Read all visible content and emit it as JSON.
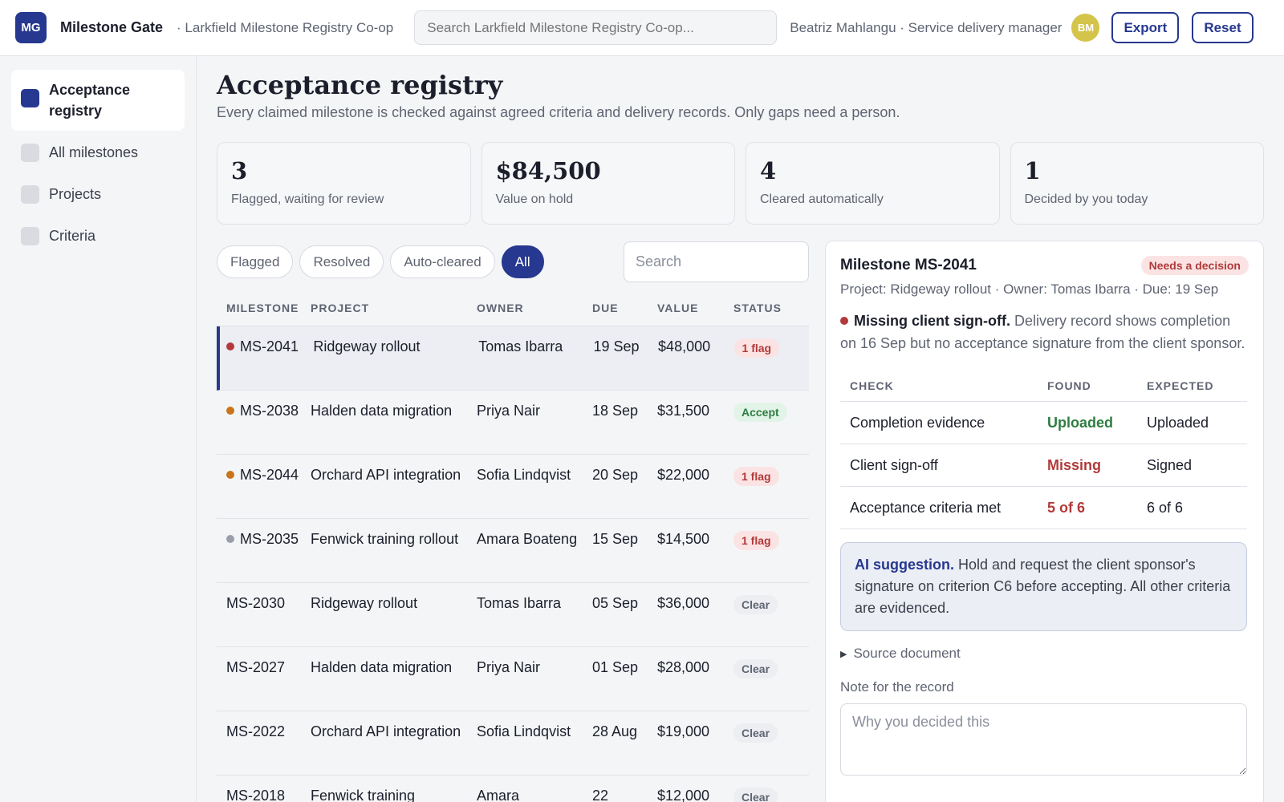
{
  "header": {
    "logo": "MG",
    "app_title": "Milestone Gate",
    "org": "· Larkfield Milestone Registry Co-op",
    "search_placeholder": "Search Larkfield Milestone Registry Co-op...",
    "user": "Beatriz Mahlangu · Service delivery manager",
    "avatar": "BM",
    "export_label": "Export",
    "reset_label": "Reset"
  },
  "sidebar": {
    "items": [
      {
        "label": "Acceptance registry",
        "active": true
      },
      {
        "label": "All milestones",
        "active": false
      },
      {
        "label": "Projects",
        "active": false
      },
      {
        "label": "Criteria",
        "active": false
      }
    ]
  },
  "main": {
    "title": "Acceptance registry",
    "subtitle": "Every claimed milestone is checked against agreed criteria and delivery records. Only gaps need a person.",
    "stats": [
      {
        "value": "3",
        "label": "Flagged, waiting for review"
      },
      {
        "value": "$84,500",
        "label": "Value on hold"
      },
      {
        "value": "4",
        "label": "Cleared automatically"
      },
      {
        "value": "1",
        "label": "Decided by you today"
      }
    ],
    "filters": [
      "Flagged",
      "Resolved",
      "Auto-cleared",
      "All"
    ],
    "active_filter": "All",
    "search_placeholder": "Search"
  },
  "table": {
    "headers": [
      "MILESTONE",
      "PROJECT",
      "OWNER",
      "DUE",
      "VALUE",
      "STATUS"
    ],
    "rows": [
      {
        "id": "MS-2041",
        "dot": "red",
        "project": "Ridgeway rollout",
        "owner": "Tomas Ibarra",
        "due": "19 Sep",
        "value": "$48,000",
        "status": "1 flag",
        "status_type": "flag",
        "selected": true
      },
      {
        "id": "MS-2038",
        "dot": "orange",
        "project": "Halden data migration",
        "owner": "Priya Nair",
        "due": "18 Sep",
        "value": "$31,500",
        "status": "Accept",
        "status_type": "accept"
      },
      {
        "id": "MS-2044",
        "dot": "orange",
        "project": "Orchard API integration",
        "owner": "Sofia Lindqvist",
        "due": "20 Sep",
        "value": "$22,000",
        "status": "1 flag",
        "status_type": "flag"
      },
      {
        "id": "MS-2035",
        "dot": "grey",
        "project": "Fenwick training rollout",
        "owner": "Amara Boateng",
        "due": "15 Sep",
        "value": "$14,500",
        "status": "1 flag",
        "status_type": "flag"
      },
      {
        "id": "MS-2030",
        "dot": "",
        "project": "Ridgeway rollout",
        "owner": "Tomas Ibarra",
        "due": "05 Sep",
        "value": "$36,000",
        "status": "Clear",
        "status_type": "clear"
      },
      {
        "id": "MS-2027",
        "dot": "",
        "project": "Halden data migration",
        "owner": "Priya Nair",
        "due": "01 Sep",
        "value": "$28,000",
        "status": "Clear",
        "status_type": "clear"
      },
      {
        "id": "MS-2022",
        "dot": "",
        "project": "Orchard API integration",
        "owner": "Sofia Lindqvist",
        "due": "28 Aug",
        "value": "$19,000",
        "status": "Clear",
        "status_type": "clear"
      },
      {
        "id": "MS-2018",
        "dot": "",
        "project": "Fenwick training",
        "owner": "Amara",
        "due": "22",
        "value": "$12,000",
        "status": "Clear",
        "status_type": "clear"
      }
    ]
  },
  "detail": {
    "title": "Milestone MS-2041",
    "badge": "Needs a decision",
    "meta": "Project: Ridgeway rollout · Owner: Tomas Ibarra · Due: 19 Sep",
    "issue_title": "Missing client sign-off.",
    "issue_text": "Delivery record shows completion on 16 Sep but no acceptance signature from the client sponsor.",
    "check_headers": [
      "CHECK",
      "FOUND",
      "EXPECTED"
    ],
    "checks": [
      {
        "check": "Completion evidence",
        "found": "Uploaded",
        "found_ok": true,
        "expected": "Uploaded"
      },
      {
        "check": "Client sign-off",
        "found": "Missing",
        "found_ok": false,
        "expected": "Signed"
      },
      {
        "check": "Acceptance criteria met",
        "found": "5 of 6",
        "found_ok": false,
        "expected": "6 of 6"
      }
    ],
    "ai_label": "AI suggestion.",
    "ai_text": "Hold and request the client sponsor's signature on criterion C6 before accepting. All other criteria are evidenced.",
    "source_label": "Source document",
    "note_label": "Note for the record",
    "note_placeholder": "Why you decided this"
  },
  "colors": {
    "accent": "#26388f",
    "danger": "#b23a3a",
    "success": "#2e7d43",
    "warning": "#c8741a",
    "avatar": "#d4c44a"
  }
}
